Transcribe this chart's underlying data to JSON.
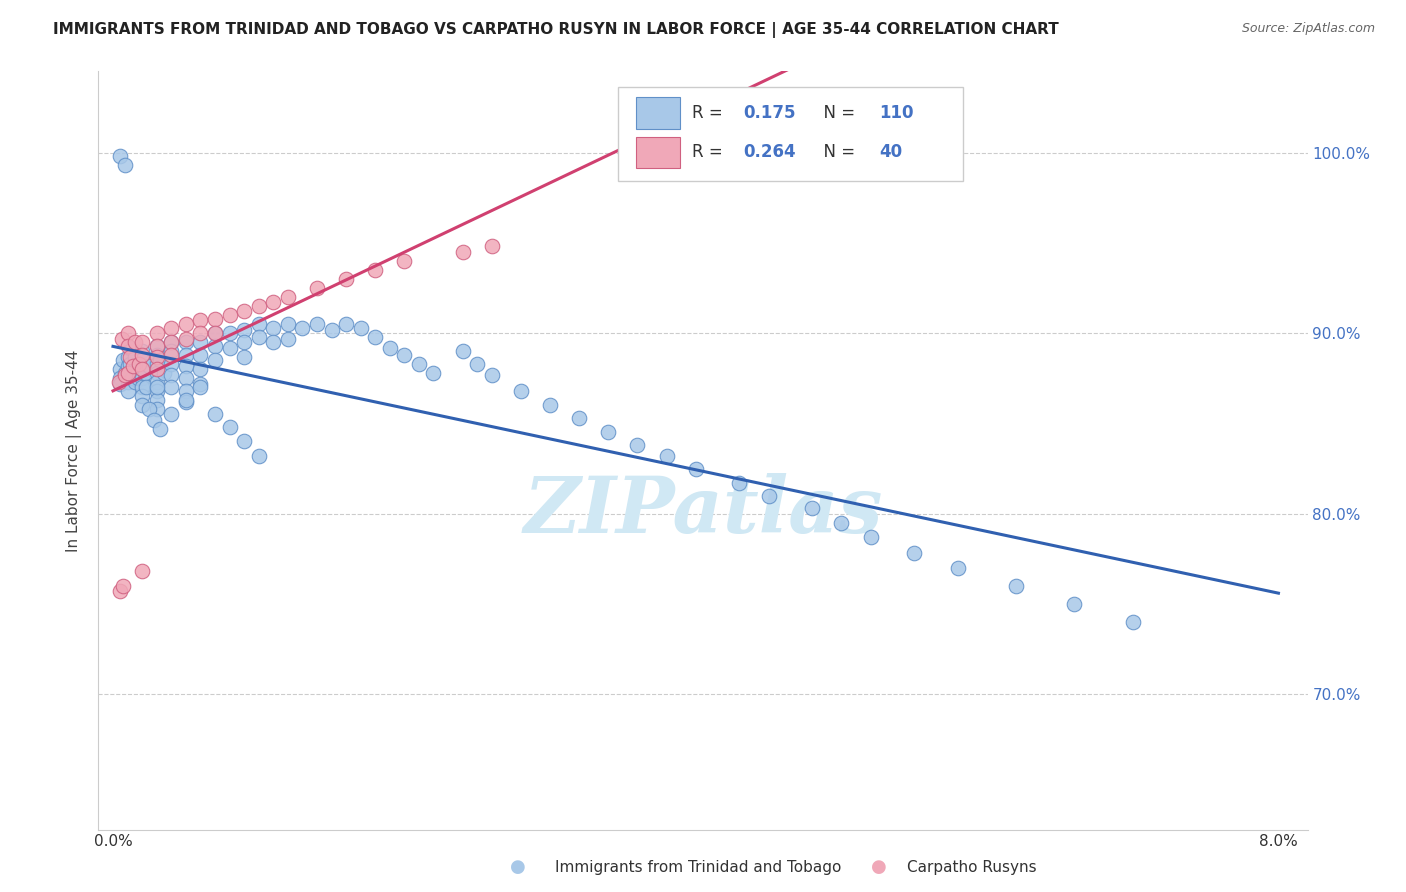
{
  "title": "IMMIGRANTS FROM TRINIDAD AND TOBAGO VS CARPATHO RUSYN IN LABOR FORCE | AGE 35-44 CORRELATION CHART",
  "source": "Source: ZipAtlas.com",
  "ylabel": "In Labor Force | Age 35-44",
  "ytick_labels": [
    "70.0%",
    "80.0%",
    "90.0%",
    "100.0%"
  ],
  "ytick_values": [
    0.7,
    0.8,
    0.9,
    1.0
  ],
  "xlim": [
    -0.001,
    0.082
  ],
  "ylim": [
    0.625,
    1.045
  ],
  "legend_blue_R": "0.175",
  "legend_blue_N": "110",
  "legend_pink_R": "0.264",
  "legend_pink_N": "40",
  "blue_marker_color": "#a8c8e8",
  "blue_edge_color": "#6090c8",
  "pink_marker_color": "#f0a8b8",
  "pink_edge_color": "#d06080",
  "blue_line_color": "#3060b0",
  "pink_line_color": "#d04070",
  "label_color": "#4472c4",
  "watermark": "ZIPatlas",
  "watermark_color": "#d0e8f4",
  "blue_x": [
    0.0005,
    0.0005,
    0.0005,
    0.0007,
    0.0008,
    0.001,
    0.001,
    0.001,
    0.001,
    0.001,
    0.0012,
    0.0012,
    0.0013,
    0.0015,
    0.0015,
    0.0015,
    0.0017,
    0.0018,
    0.002,
    0.002,
    0.002,
    0.002,
    0.002,
    0.002,
    0.002,
    0.0022,
    0.0023,
    0.0025,
    0.003,
    0.003,
    0.003,
    0.003,
    0.003,
    0.003,
    0.003,
    0.003,
    0.0032,
    0.0035,
    0.004,
    0.004,
    0.004,
    0.004,
    0.004,
    0.005,
    0.005,
    0.005,
    0.005,
    0.005,
    0.005,
    0.006,
    0.006,
    0.006,
    0.006,
    0.007,
    0.007,
    0.007,
    0.008,
    0.008,
    0.009,
    0.009,
    0.009,
    0.01,
    0.01,
    0.011,
    0.011,
    0.012,
    0.012,
    0.013,
    0.014,
    0.015,
    0.016,
    0.017,
    0.018,
    0.019,
    0.02,
    0.021,
    0.022,
    0.024,
    0.025,
    0.026,
    0.028,
    0.03,
    0.032,
    0.034,
    0.036,
    0.038,
    0.04,
    0.043,
    0.045,
    0.048,
    0.05,
    0.052,
    0.055,
    0.058,
    0.062,
    0.066,
    0.07,
    0.0005,
    0.0008,
    0.003,
    0.0025,
    0.0028,
    0.0032,
    0.004,
    0.005,
    0.006,
    0.007,
    0.008,
    0.009,
    0.01
  ],
  "blue_y": [
    0.88,
    0.875,
    0.872,
    0.885,
    0.878,
    0.887,
    0.882,
    0.878,
    0.873,
    0.868,
    0.892,
    0.883,
    0.875,
    0.887,
    0.88,
    0.873,
    0.875,
    0.883,
    0.89,
    0.885,
    0.88,
    0.875,
    0.87,
    0.865,
    0.86,
    0.878,
    0.87,
    0.882,
    0.893,
    0.888,
    0.883,
    0.878,
    0.873,
    0.868,
    0.863,
    0.858,
    0.885,
    0.878,
    0.895,
    0.89,
    0.883,
    0.877,
    0.87,
    0.895,
    0.888,
    0.882,
    0.875,
    0.868,
    0.862,
    0.895,
    0.888,
    0.88,
    0.872,
    0.9,
    0.893,
    0.885,
    0.9,
    0.892,
    0.902,
    0.895,
    0.887,
    0.905,
    0.898,
    0.903,
    0.895,
    0.905,
    0.897,
    0.903,
    0.905,
    0.902,
    0.905,
    0.903,
    0.898,
    0.892,
    0.888,
    0.883,
    0.878,
    0.89,
    0.883,
    0.877,
    0.868,
    0.86,
    0.853,
    0.845,
    0.838,
    0.832,
    0.825,
    0.817,
    0.81,
    0.803,
    0.795,
    0.787,
    0.778,
    0.77,
    0.76,
    0.75,
    0.74,
    0.998,
    0.993,
    0.87,
    0.858,
    0.852,
    0.847,
    0.855,
    0.863,
    0.87,
    0.855,
    0.848,
    0.84,
    0.832
  ],
  "pink_x": [
    0.0004,
    0.0006,
    0.0008,
    0.001,
    0.001,
    0.001,
    0.0012,
    0.0014,
    0.0015,
    0.0018,
    0.002,
    0.002,
    0.002,
    0.003,
    0.003,
    0.003,
    0.003,
    0.004,
    0.004,
    0.004,
    0.005,
    0.005,
    0.006,
    0.006,
    0.007,
    0.007,
    0.008,
    0.009,
    0.01,
    0.011,
    0.012,
    0.014,
    0.016,
    0.018,
    0.02,
    0.024,
    0.026,
    0.0005,
    0.0007,
    0.002
  ],
  "pink_y": [
    0.873,
    0.897,
    0.877,
    0.9,
    0.893,
    0.878,
    0.887,
    0.882,
    0.895,
    0.883,
    0.895,
    0.888,
    0.88,
    0.9,
    0.893,
    0.887,
    0.88,
    0.903,
    0.895,
    0.888,
    0.905,
    0.897,
    0.907,
    0.9,
    0.908,
    0.9,
    0.91,
    0.912,
    0.915,
    0.917,
    0.92,
    0.925,
    0.93,
    0.935,
    0.94,
    0.945,
    0.948,
    0.757,
    0.76,
    0.768
  ]
}
